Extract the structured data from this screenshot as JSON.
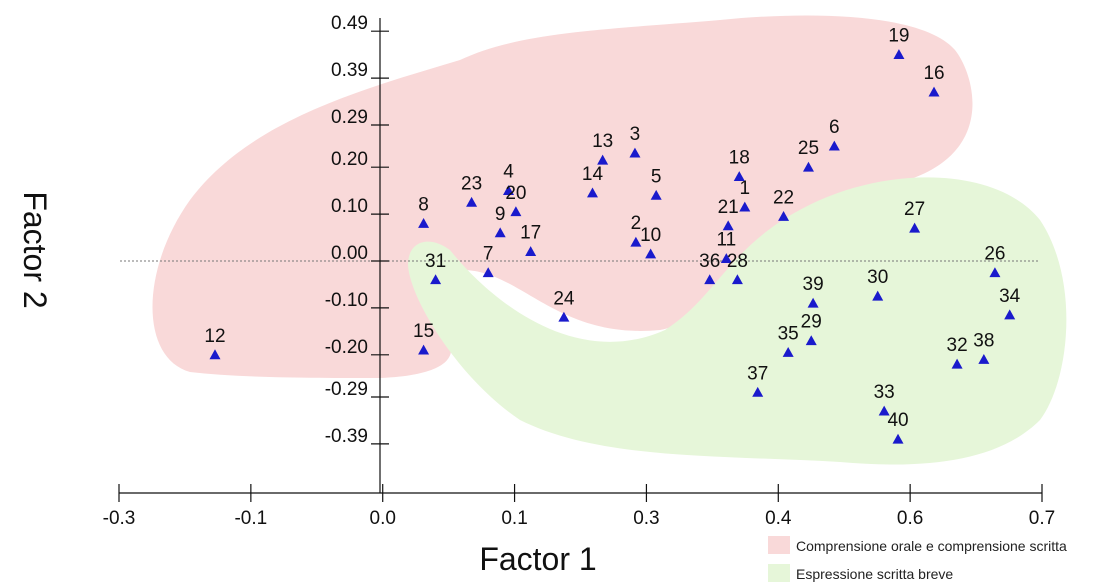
{
  "chart_data": {
    "type": "scatter",
    "xlabel": "Factor 1",
    "ylabel": "Factor 2",
    "xlim": [
      -0.3,
      0.7
    ],
    "ylim": [
      -0.39,
      0.49
    ],
    "x_ticks": [
      "-0.3",
      "-0.1",
      "0.0",
      "0.1",
      "0.3",
      "0.4",
      "0.6",
      "0.7"
    ],
    "y_ticks": [
      "0.49",
      "0.39",
      "0.29",
      "0.20",
      "0.10",
      "0.00",
      "-0.10",
      "-0.20",
      "-0.29",
      "-0.39"
    ],
    "reference_line_y": 0,
    "marker": "triangle",
    "marker_color": "#1a1acc",
    "regions": [
      {
        "name": "Comprensione orale e comprensione scritta",
        "color": "#f9d9d9"
      },
      {
        "name": "Espressione scritta breve",
        "color": "#e6f6d9"
      }
    ],
    "points": [
      {
        "label": "1",
        "x": 0.378,
        "y": 0.115
      },
      {
        "label": "2",
        "x": 0.26,
        "y": 0.04
      },
      {
        "label": "3",
        "x": 0.259,
        "y": 0.23
      },
      {
        "label": "4",
        "x": 0.122,
        "y": 0.15
      },
      {
        "label": "5",
        "x": 0.282,
        "y": 0.14
      },
      {
        "label": "6",
        "x": 0.475,
        "y": 0.245
      },
      {
        "label": "7",
        "x": 0.1,
        "y": -0.025
      },
      {
        "label": "8",
        "x": 0.03,
        "y": 0.08
      },
      {
        "label": "9",
        "x": 0.113,
        "y": 0.06
      },
      {
        "label": "10",
        "x": 0.276,
        "y": 0.015
      },
      {
        "label": "11",
        "x": 0.358,
        "y": 0.005
      },
      {
        "label": "12",
        "x": -0.196,
        "y": -0.2
      },
      {
        "label": "13",
        "x": 0.224,
        "y": 0.215
      },
      {
        "label": "14",
        "x": 0.213,
        "y": 0.145
      },
      {
        "label": "15",
        "x": 0.03,
        "y": -0.19
      },
      {
        "label": "16",
        "x": 0.583,
        "y": 0.36
      },
      {
        "label": "17",
        "x": 0.146,
        "y": 0.02
      },
      {
        "label": "18",
        "x": 0.372,
        "y": 0.18
      },
      {
        "label": "19",
        "x": 0.545,
        "y": 0.44
      },
      {
        "label": "20",
        "x": 0.13,
        "y": 0.105
      },
      {
        "label": "21",
        "x": 0.36,
        "y": 0.075
      },
      {
        "label": "22",
        "x": 0.42,
        "y": 0.095
      },
      {
        "label": "23",
        "x": 0.082,
        "y": 0.125
      },
      {
        "label": "24",
        "x": 0.182,
        "y": -0.12
      },
      {
        "label": "25",
        "x": 0.447,
        "y": 0.2
      },
      {
        "label": "26",
        "x": 0.649,
        "y": -0.025
      },
      {
        "label": "27",
        "x": 0.562,
        "y": 0.07
      },
      {
        "label": "28",
        "x": 0.37,
        "y": -0.04
      },
      {
        "label": "29",
        "x": 0.45,
        "y": -0.17
      },
      {
        "label": "30",
        "x": 0.522,
        "y": -0.075
      },
      {
        "label": "31",
        "x": 0.043,
        "y": -0.04
      },
      {
        "label": "32",
        "x": 0.608,
        "y": -0.22
      },
      {
        "label": "33",
        "x": 0.529,
        "y": -0.32
      },
      {
        "label": "34",
        "x": 0.665,
        "y": -0.115
      },
      {
        "label": "35",
        "x": 0.425,
        "y": -0.195
      },
      {
        "label": "36",
        "x": 0.34,
        "y": -0.04
      },
      {
        "label": "37",
        "x": 0.392,
        "y": -0.28
      },
      {
        "label": "38",
        "x": 0.637,
        "y": -0.21
      },
      {
        "label": "39",
        "x": 0.452,
        "y": -0.09
      },
      {
        "label": "40",
        "x": 0.544,
        "y": -0.38
      }
    ]
  }
}
